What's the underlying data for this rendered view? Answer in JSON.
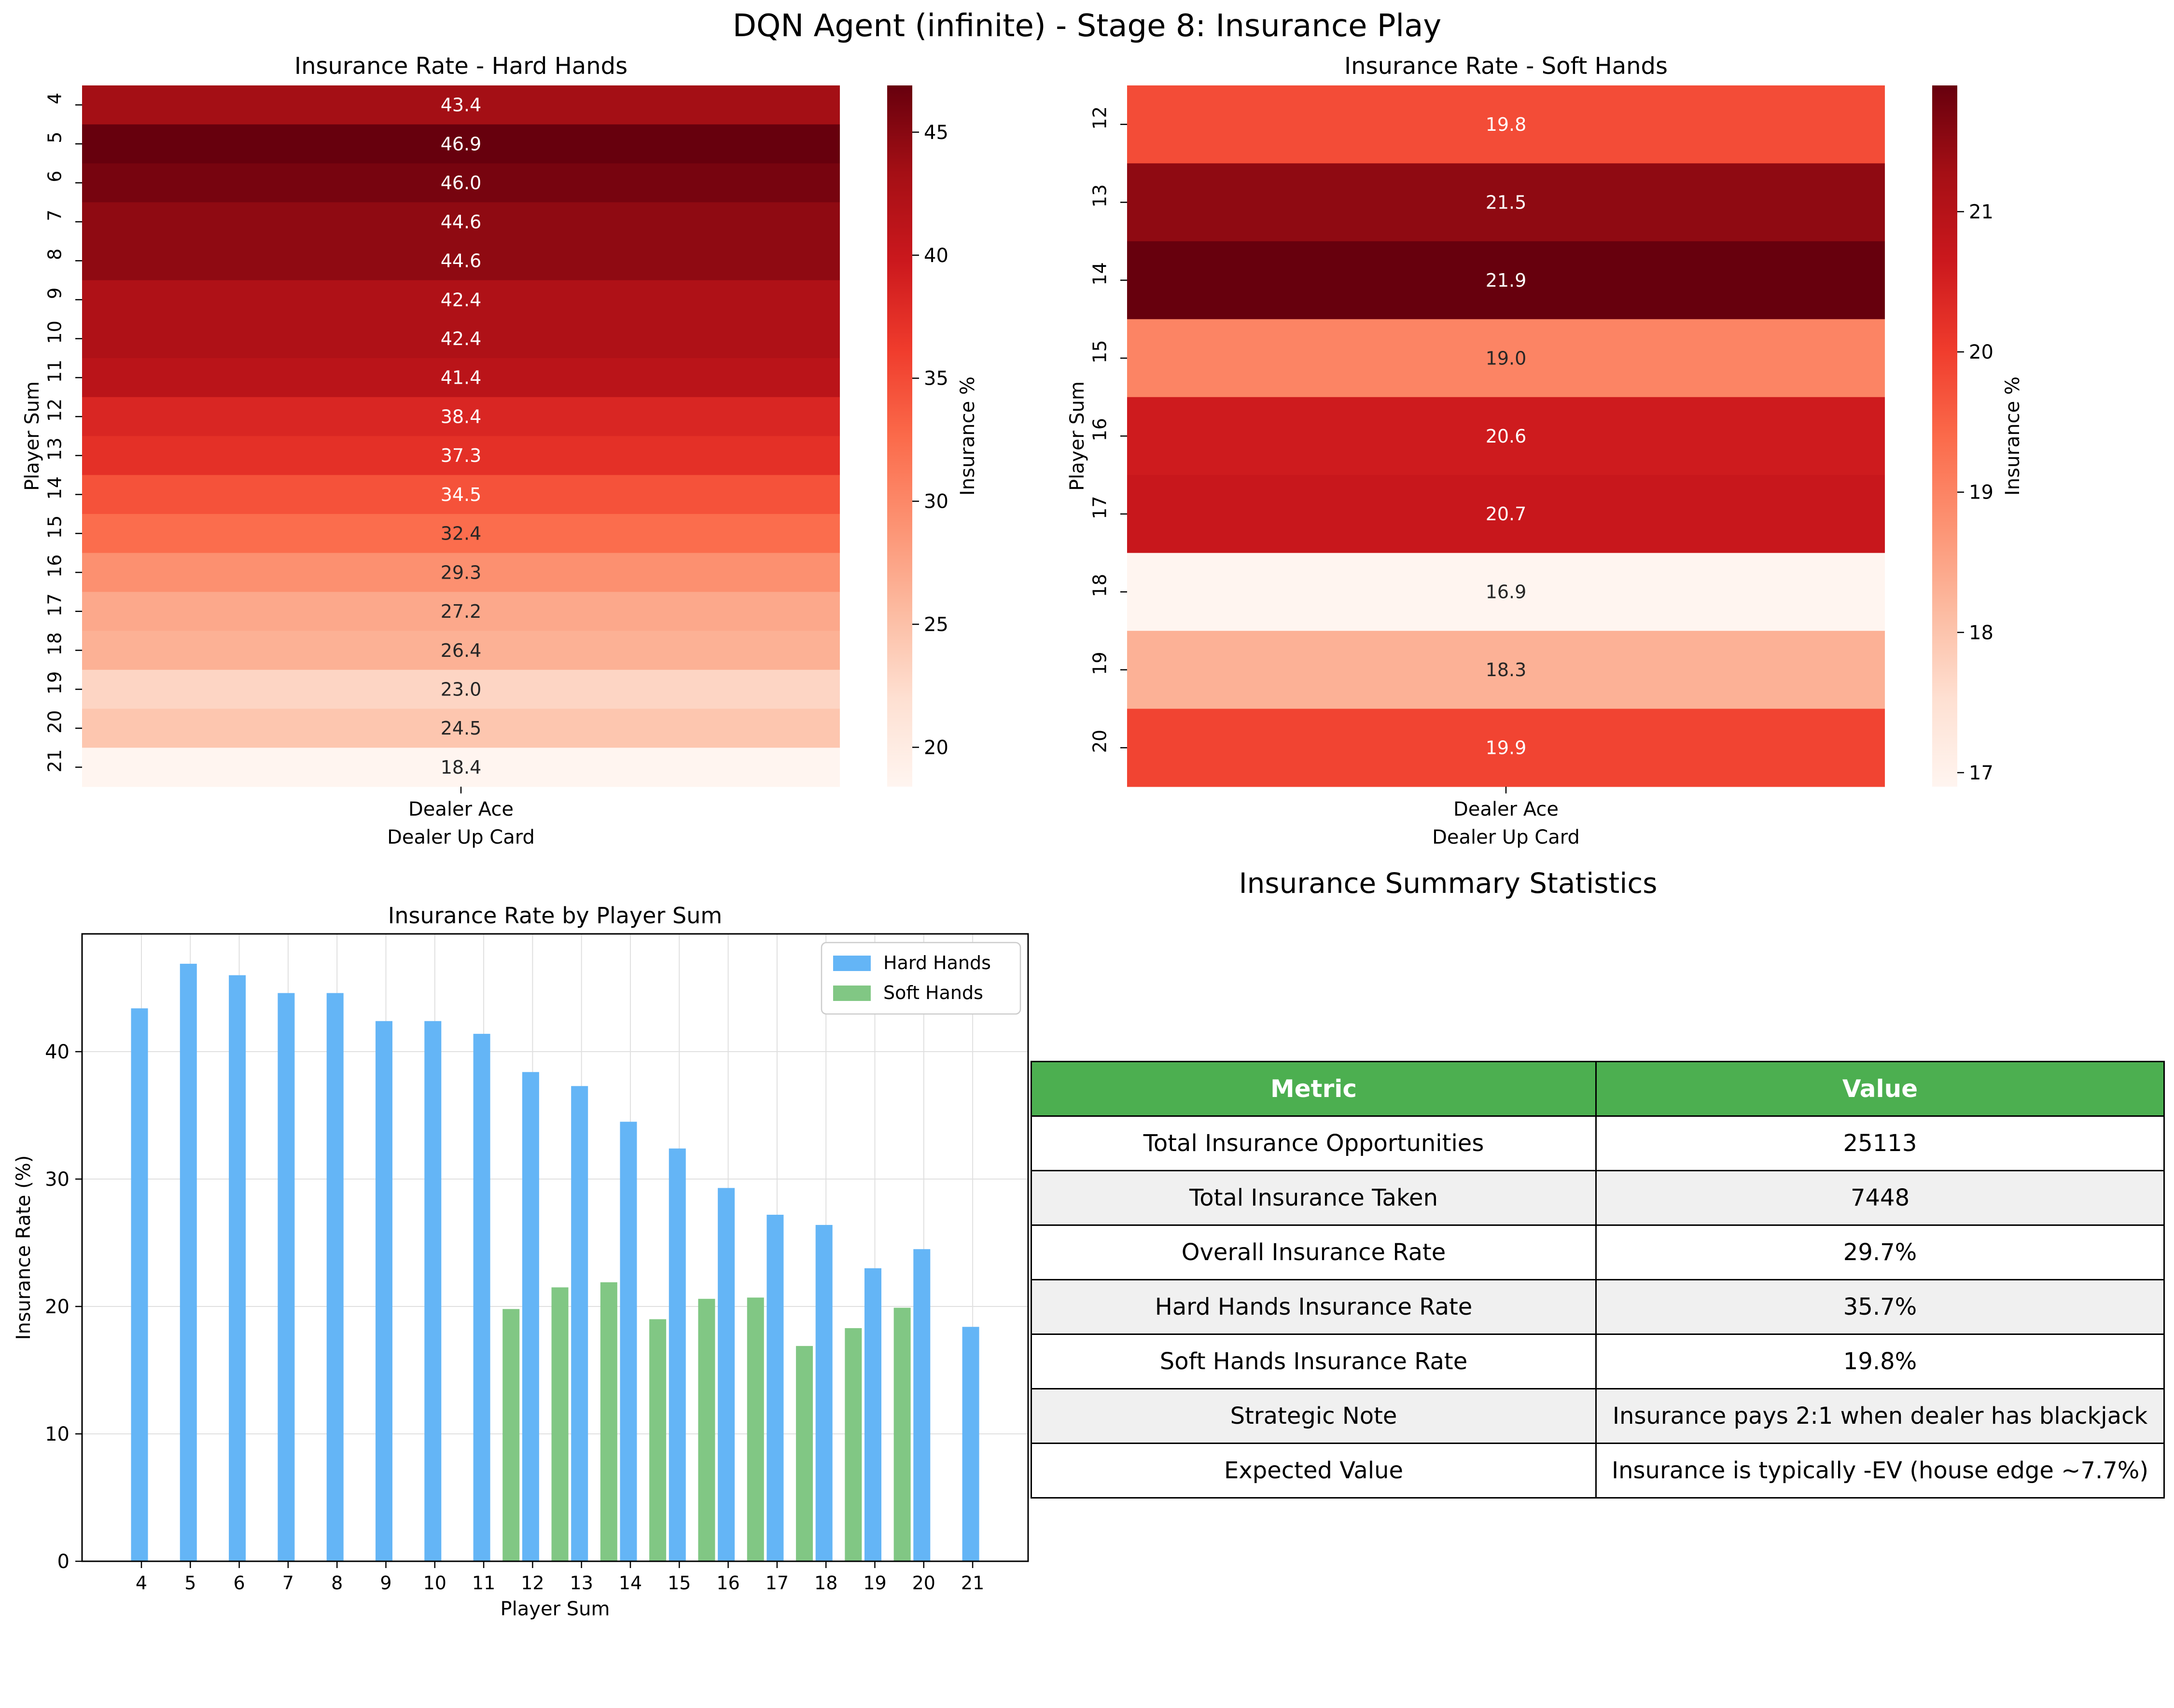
{
  "figure_title": "DQN Agent (infinite) - Stage 8: Insurance Play",
  "chart_data": [
    {
      "type": "heatmap",
      "title": "Insurance Rate - Hard Hands",
      "xlabel": "Dealer Up Card",
      "ylabel": "Player Sum",
      "x_categories": [
        "Dealer Ace"
      ],
      "y_categories": [
        "4",
        "5",
        "6",
        "7",
        "8",
        "9",
        "10",
        "11",
        "12",
        "13",
        "14",
        "15",
        "16",
        "17",
        "18",
        "19",
        "20",
        "21"
      ],
      "values": [
        43.4,
        46.9,
        46.0,
        44.6,
        44.6,
        42.4,
        42.4,
        41.4,
        38.4,
        37.3,
        34.5,
        32.4,
        29.3,
        27.2,
        26.4,
        23.0,
        24.5,
        18.4
      ],
      "value_labels": [
        "43.4",
        "46.9",
        "46.0",
        "44.6",
        "44.6",
        "42.4",
        "42.4",
        "41.4",
        "38.4",
        "37.3",
        "34.5",
        "32.4",
        "29.3",
        "27.2",
        "26.4",
        "23.0",
        "24.5",
        "18.4"
      ],
      "colormap": "Reds",
      "colorbar_label": "Insurance %",
      "colorbar_range": [
        18.4,
        46.9
      ],
      "colorbar_ticks": [
        20,
        25,
        30,
        35,
        40,
        45
      ]
    },
    {
      "type": "heatmap",
      "title": "Insurance Rate - Soft Hands",
      "xlabel": "Dealer Up Card",
      "ylabel": "Player Sum",
      "x_categories": [
        "Dealer Ace"
      ],
      "y_categories": [
        "12",
        "13",
        "14",
        "15",
        "16",
        "17",
        "18",
        "19",
        "20"
      ],
      "values": [
        19.8,
        21.5,
        21.9,
        19.0,
        20.6,
        20.7,
        16.9,
        18.3,
        19.9
      ],
      "value_labels": [
        "19.8",
        "21.5",
        "21.9",
        "19.0",
        "20.6",
        "20.7",
        "16.9",
        "18.3",
        "19.9"
      ],
      "colormap": "Reds",
      "colorbar_label": "Insurance %",
      "colorbar_range": [
        16.9,
        21.9
      ],
      "colorbar_ticks": [
        17,
        18,
        19,
        20,
        21
      ]
    },
    {
      "type": "bar",
      "title": "Insurance Rate by Player Sum",
      "xlabel": "Player Sum",
      "ylabel": "Insurance Rate (%)",
      "categories": [
        "4",
        "5",
        "6",
        "7",
        "8",
        "9",
        "10",
        "11",
        "12",
        "13",
        "14",
        "15",
        "16",
        "17",
        "18",
        "19",
        "20",
        "21"
      ],
      "series": [
        {
          "name": "Hard Hands",
          "color": "#64b5f6",
          "values": [
            43.4,
            46.9,
            46.0,
            44.6,
            44.6,
            42.4,
            42.4,
            41.4,
            38.4,
            37.3,
            34.5,
            32.4,
            29.3,
            27.2,
            26.4,
            23.0,
            24.5,
            18.4
          ]
        },
        {
          "name": "Soft Hands",
          "color": "#81c784",
          "values": [
            null,
            null,
            null,
            null,
            null,
            null,
            null,
            null,
            19.8,
            21.5,
            21.9,
            19.0,
            20.6,
            20.7,
            16.9,
            18.3,
            19.9,
            null
          ]
        }
      ],
      "ylim": [
        0,
        49.245
      ],
      "yticks": [
        0,
        10,
        20,
        30,
        40
      ],
      "grid": true,
      "legend_position": "top-right"
    },
    {
      "type": "table",
      "title": "Insurance Summary Statistics",
      "columns": [
        "Metric",
        "Value"
      ],
      "rows": [
        [
          "Total Insurance Opportunities",
          "25113"
        ],
        [
          "Total Insurance Taken",
          "7448"
        ],
        [
          "Overall Insurance Rate",
          "29.7%"
        ],
        [
          "Hard Hands Insurance Rate",
          "35.7%"
        ],
        [
          "Soft Hands Insurance Rate",
          "19.8%"
        ],
        [
          "Strategic Note",
          "Insurance pays 2:1 when dealer has blackjack"
        ],
        [
          "Expected Value",
          "Insurance is typically -EV (house edge ~7.7%)"
        ]
      ],
      "header_color": "#4caf50",
      "alt_row_color": "#f0f0f0"
    }
  ]
}
